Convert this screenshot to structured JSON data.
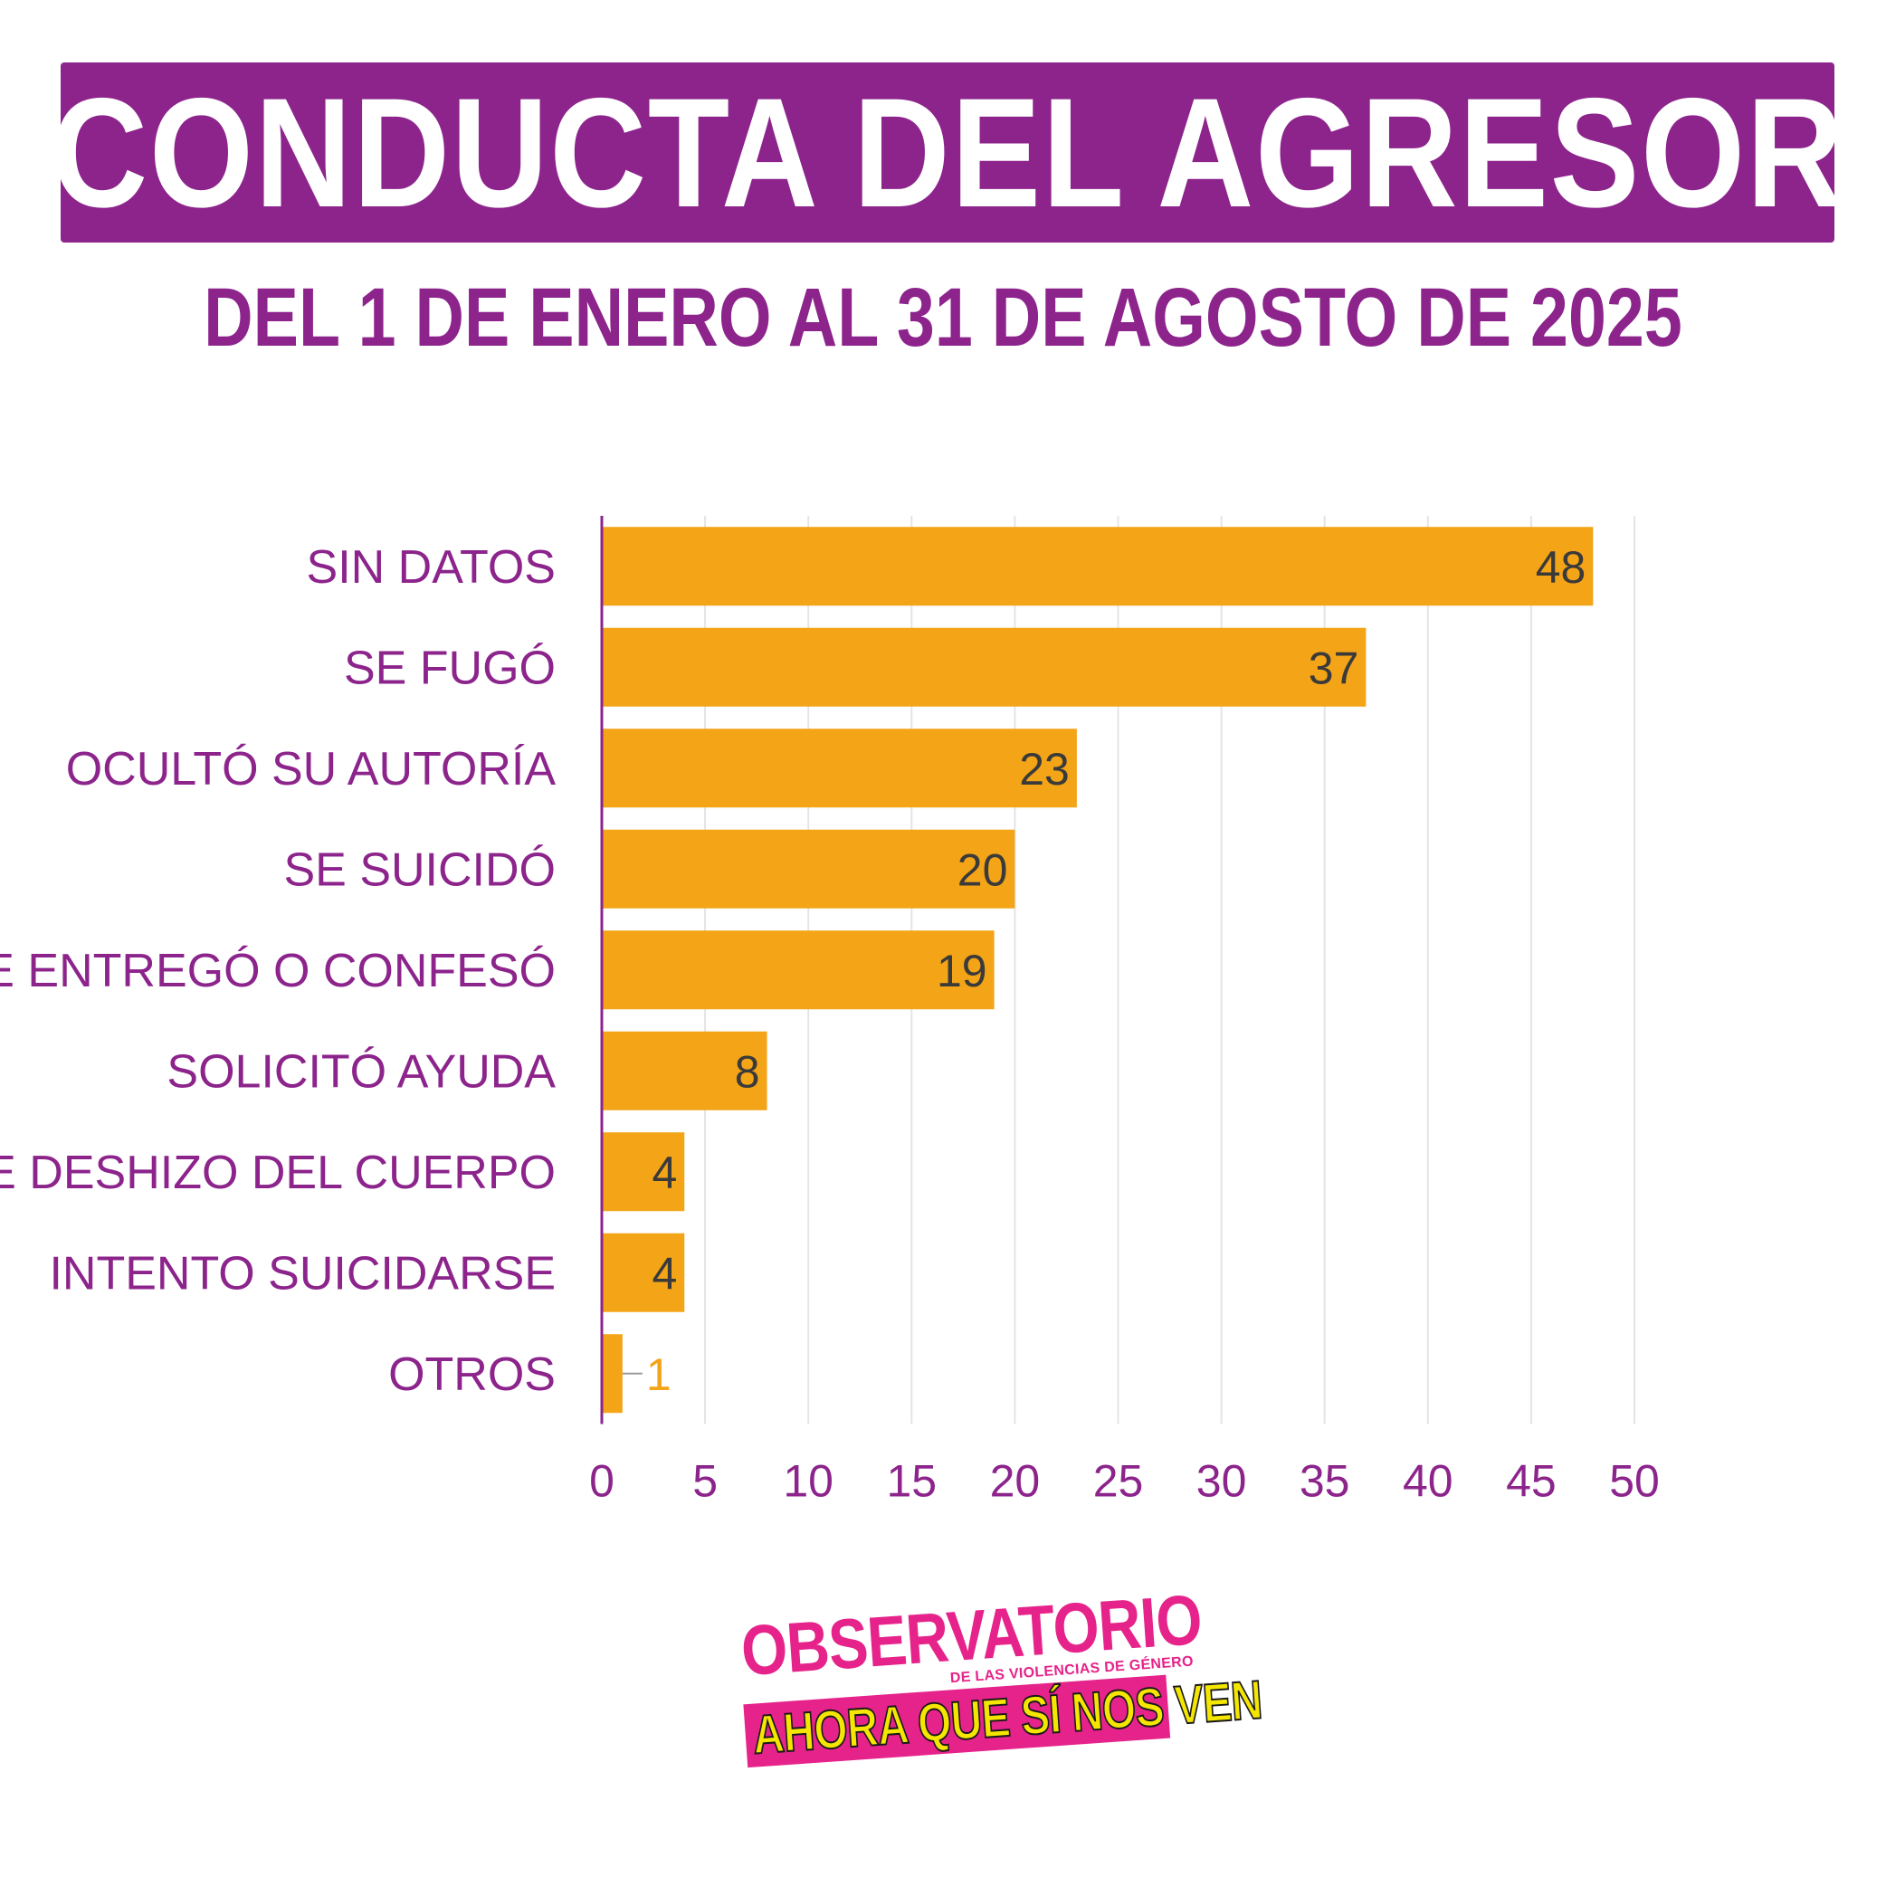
{
  "header": {
    "title": "CONDUCTA DEL AGRESOR",
    "subtitle": "DEL 1 DE ENERO AL 31 DE AGOSTO DE 2025"
  },
  "colors": {
    "brand_purple": "#8c248c",
    "bar": "#f3a417",
    "grid": "#e4e4e4",
    "logo_pink": "#e6238a",
    "logo_yellow": "#f4e600"
  },
  "chart_data": {
    "type": "bar",
    "orientation": "horizontal",
    "title": "CONDUCTA DEL AGRESOR",
    "subtitle": "DEL 1 DE ENERO AL 31 DE AGOSTO DE 2025",
    "categories": [
      "SIN DATOS",
      "SE FUGÓ",
      "OCULTÓ SU AUTORÍA",
      "SE SUICIDÓ",
      "SE ENTREGÓ O CONFESÓ",
      "SOLICITÓ AYUDA",
      "SE DESHIZO DEL CUERPO",
      "INTENTO SUICIDARSE",
      "OTROS"
    ],
    "values": [
      48,
      37,
      23,
      20,
      19,
      8,
      4,
      4,
      1
    ],
    "xlim": [
      0,
      50
    ],
    "xticks": [
      0,
      5,
      10,
      15,
      20,
      25,
      30,
      35,
      40,
      45,
      50
    ],
    "xlabel": "",
    "ylabel": "",
    "grid": "vertical",
    "data_labels": true,
    "legend": "none"
  },
  "logo": {
    "top": "OBSERVATORIO",
    "sub": "DE LAS VIOLENCIAS DE GÉNERO",
    "band": "AHORA QUE SÍ NOS VEN"
  }
}
